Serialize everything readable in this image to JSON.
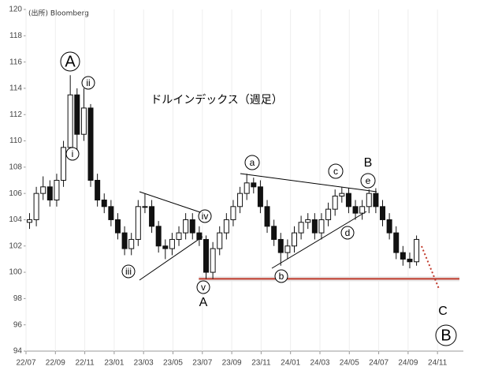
{
  "chart_data": {
    "type": "candlestick",
    "title": "ドルインデックス（週足）",
    "source": "(出所) Bloomberg",
    "x": [
      2022.52,
      2022.5585,
      2022.597,
      2022.6355,
      2022.674,
      2022.7125,
      2022.751,
      2022.7895,
      2022.828,
      2022.8665,
      2022.905,
      2022.9435,
      2022.982,
      2023.0205,
      2023.059,
      2023.0975,
      2023.136,
      2023.1745,
      2023.213,
      2023.2515,
      2023.29,
      2023.3285,
      2023.367,
      2023.4055,
      2023.444,
      2023.4825,
      2023.521,
      2023.5595,
      2023.598,
      2023.6365,
      2023.675,
      2023.7135,
      2023.752,
      2023.7905,
      2023.829,
      2023.8675,
      2023.906,
      2023.9445,
      2023.983,
      2024.0215,
      2024.06,
      2024.0985,
      2024.137,
      2024.1755,
      2024.214,
      2024.2525,
      2024.291,
      2024.3295,
      2024.368,
      2024.4065,
      2024.445,
      2024.4835,
      2024.522,
      2024.5605,
      2024.599,
      2024.6375,
      2024.676,
      2024.7145
    ],
    "open": [
      103.8,
      104.0,
      106.0,
      106.5,
      105.5,
      107.0,
      109.5,
      113.5,
      110.5,
      112.5,
      107.0,
      105.5,
      105.0,
      104.0,
      103.0,
      101.8,
      102.5,
      105.0,
      105.0,
      103.5,
      102.0,
      101.8,
      102.5,
      103.0,
      104.0,
      103.0,
      102.5,
      100.0,
      101.8,
      103.0,
      104.0,
      105.0,
      106.0,
      106.8,
      106.5,
      105.0,
      103.5,
      102.5,
      101.5,
      102.0,
      103.0,
      103.8,
      104.0,
      103.0,
      104.0,
      104.8,
      105.8,
      106.0,
      105.0,
      104.5,
      105.0,
      106.0,
      105.0,
      104.0,
      103.0,
      101.5,
      101.0,
      100.8
    ],
    "high": [
      104.5,
      106.5,
      107.3,
      107.0,
      107.5,
      110.0,
      115.0,
      114.0,
      114.0,
      112.8,
      107.5,
      106.0,
      105.5,
      104.5,
      103.5,
      103.0,
      105.5,
      106.0,
      105.5,
      103.9,
      102.5,
      103.0,
      103.5,
      104.5,
      104.5,
      103.5,
      102.8,
      102.3,
      103.5,
      104.5,
      105.5,
      106.5,
      107.5,
      107.2,
      107.0,
      105.5,
      104.0,
      103.0,
      102.5,
      103.5,
      104.3,
      104.5,
      104.5,
      104.5,
      105.3,
      106.3,
      106.5,
      106.4,
      105.5,
      105.5,
      106.3,
      106.4,
      105.5,
      104.5,
      103.5,
      102.0,
      101.5,
      102.8
    ],
    "low": [
      103.3,
      103.5,
      105.5,
      105.0,
      105.0,
      106.5,
      109.0,
      109.0,
      110.0,
      106.5,
      105.0,
      104.5,
      103.5,
      102.5,
      101.3,
      101.3,
      102.0,
      104.5,
      103.0,
      101.5,
      101.0,
      101.3,
      102.0,
      102.5,
      102.5,
      102.0,
      99.5,
      99.5,
      101.3,
      102.5,
      103.5,
      104.5,
      105.5,
      106.0,
      104.5,
      103.0,
      102.0,
      100.5,
      101.0,
      101.5,
      102.5,
      103.3,
      102.5,
      102.5,
      103.5,
      104.3,
      105.3,
      104.5,
      104.0,
      104.0,
      104.5,
      104.5,
      103.5,
      102.5,
      101.0,
      100.5,
      100.3,
      100.5
    ],
    "close": [
      104.0,
      106.0,
      106.5,
      105.5,
      107.0,
      109.5,
      113.5,
      110.5,
      112.5,
      107.0,
      105.5,
      105.0,
      104.0,
      103.0,
      101.8,
      102.5,
      105.0,
      105.0,
      103.5,
      102.0,
      101.8,
      102.5,
      103.0,
      104.0,
      103.0,
      102.5,
      100.0,
      101.8,
      103.0,
      104.0,
      105.0,
      106.0,
      106.8,
      106.5,
      105.0,
      103.5,
      102.5,
      101.5,
      102.0,
      103.0,
      103.8,
      104.0,
      103.0,
      104.0,
      104.8,
      105.8,
      106.0,
      105.0,
      104.5,
      105.0,
      106.0,
      105.0,
      104.0,
      103.0,
      101.5,
      101.0,
      100.8,
      102.5
    ],
    "up_color": "#ffffff",
    "down_color": "#111111",
    "support_level": 99.5,
    "support_color": "#c0392b",
    "xlim": [
      2022.5,
      2024.98
    ],
    "xticks": [
      {
        "value": 2022.5,
        "label": "22/07"
      },
      {
        "value": 2022.6667,
        "label": "22/09"
      },
      {
        "value": 2022.8333,
        "label": "22/11"
      },
      {
        "value": 2023.0,
        "label": "23/01"
      },
      {
        "value": 2023.1667,
        "label": "23/03"
      },
      {
        "value": 2023.3333,
        "label": "23/05"
      },
      {
        "value": 2023.5,
        "label": "23/07"
      },
      {
        "value": 2023.6667,
        "label": "23/09"
      },
      {
        "value": 2023.8333,
        "label": "23/11"
      },
      {
        "value": 2024.0,
        "label": "24/01"
      },
      {
        "value": 2024.1667,
        "label": "24/03"
      },
      {
        "value": 2024.3333,
        "label": "24/05"
      },
      {
        "value": 2024.5,
        "label": "24/07"
      },
      {
        "value": 2024.6667,
        "label": "24/09"
      },
      {
        "value": 2024.8333,
        "label": "24/11"
      }
    ],
    "ylim": [
      94,
      120
    ],
    "yticks": [
      94,
      96,
      98,
      100,
      102,
      104,
      106,
      108,
      110,
      112,
      114,
      116,
      118,
      120
    ],
    "grid": true,
    "annotations": [
      "A",
      "ii",
      "i",
      "iii",
      "iv",
      "v",
      "A",
      "a",
      "b",
      "c",
      "d",
      "e",
      "B",
      "C",
      "B"
    ]
  }
}
